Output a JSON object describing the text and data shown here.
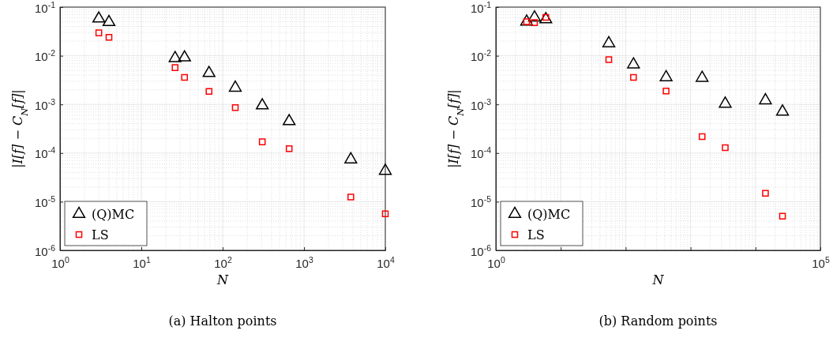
{
  "chart_data": [
    {
      "type": "scatter",
      "title": "(a) Halton points",
      "xlabel": "N",
      "ylabel": "|I[f] − C$_{N}$[f]|",
      "log": "xy",
      "grid": true,
      "legend": "bottom left",
      "xlim": [
        1,
        10000
      ],
      "xticks": [
        {
          "value": 1,
          "label": "10$^{0}$"
        },
        {
          "value": 10,
          "label": "10$^{1}$"
        },
        {
          "value": 100,
          "label": "10$^{2}$"
        },
        {
          "value": 1000,
          "label": "10$^{3}$"
        },
        {
          "value": 10000,
          "label": "10$^{4}$"
        }
      ],
      "ylim": [
        1e-06,
        0.1
      ],
      "yticks": [
        {
          "value": 1e-06,
          "label": "10$^{-6}$"
        },
        {
          "value": 1e-05,
          "label": "10$^{-5}$"
        },
        {
          "value": 0.0001,
          "label": "10$^{-4}$"
        },
        {
          "value": 0.001,
          "label": "10$^{-3}$"
        },
        {
          "value": 0.01,
          "label": "10$^{-2}$"
        },
        {
          "value": 0.1,
          "label": "10$^{-1}$"
        }
      ],
      "series": [
        {
          "name": "(Q)MC",
          "color": "#000000",
          "marker": "triangle",
          "x": [
            3,
            4,
            26,
            34,
            68,
            143,
            307,
            657,
            3765,
            10000
          ],
          "values": [
            0.058,
            0.049,
            0.0089,
            0.0092,
            0.0044,
            0.0022,
            0.00095,
            0.00045,
            7.4e-05,
            4.3e-05
          ]
        },
        {
          "name": "LS",
          "color": "#ff0000",
          "marker": "square",
          "x": [
            3,
            4,
            26,
            34,
            68,
            143,
            307,
            657,
            3765,
            10000
          ],
          "values": [
            0.0295,
            0.024,
            0.0057,
            0.0036,
            0.00185,
            0.00086,
            0.00017,
            0.000123,
            1.25e-05,
            5.65e-06
          ]
        }
      ]
    },
    {
      "type": "scatter",
      "title": "(b) Random points",
      "xlabel": "N",
      "ylabel": "|I[f] − C$_{N}$[f]|",
      "log": "xy",
      "grid": true,
      "legend": "bottom left",
      "xlim": [
        1,
        100000
      ],
      "xticks": [
        {
          "value": 1,
          "label": "10$^{0}$"
        },
        {
          "value": 10,
          "label": null
        },
        {
          "value": 100,
          "label": null
        },
        {
          "value": 1000,
          "label": null
        },
        {
          "value": 10000,
          "label": null
        },
        {
          "value": 100000,
          "label": "10$^{5}$"
        }
      ],
      "ylim": [
        1e-06,
        0.1
      ],
      "yticks": [
        {
          "value": 1e-06,
          "label": "10$^{-6}$"
        },
        {
          "value": 1e-05,
          "label": "10$^{-5}$"
        },
        {
          "value": 0.0001,
          "label": "10$^{-4}$"
        },
        {
          "value": 0.001,
          "label": "10$^{-3}$"
        },
        {
          "value": 0.01,
          "label": "10$^{-2}$"
        },
        {
          "value": 0.1,
          "label": "10$^{-1}$"
        }
      ],
      "series": [
        {
          "name": "(Q)MC",
          "color": "#000000",
          "marker": "triangle",
          "x": [
            2.98,
            3.94,
            5.88,
            55,
            132,
            420,
            1507,
            3422,
            14250,
            26100
          ],
          "values": [
            0.05,
            0.061,
            0.056,
            0.018,
            0.0066,
            0.0036,
            0.0035,
            0.00103,
            0.00121,
            0.00071
          ]
        },
        {
          "name": "LS",
          "color": "#ff0000",
          "marker": "square",
          "x": [
            2.98,
            3.94,
            5.88,
            55,
            132,
            420,
            1507,
            3422,
            14250,
            26100
          ],
          "values": [
            0.05,
            0.048,
            0.0615,
            0.0083,
            0.0036,
            0.00188,
            0.000218,
            0.000129,
            1.49e-05,
            5.05e-06
          ]
        }
      ]
    }
  ]
}
